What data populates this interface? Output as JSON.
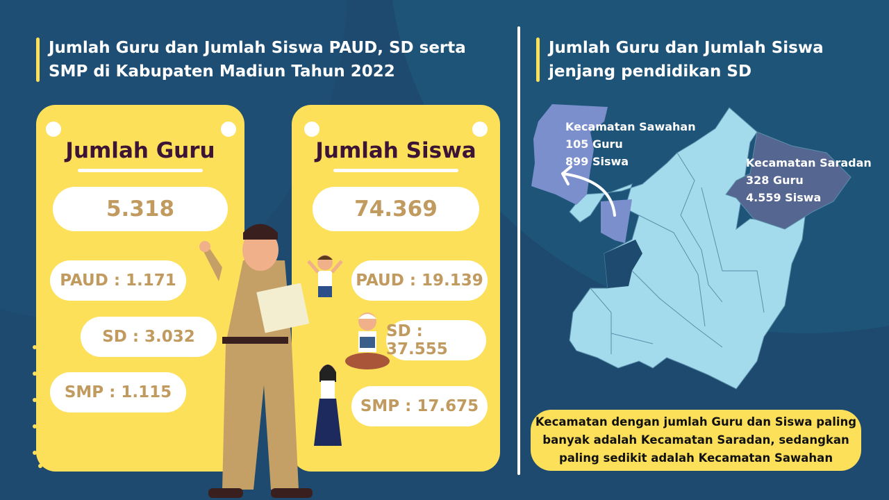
{
  "left": {
    "title_line1": "Jumlah Guru dan Jumlah Siswa PAUD, SD serta",
    "title_line2": "SMP di Kabupaten Madiun Tahun 2022",
    "guru": {
      "heading": "Jumlah Guru",
      "total": "5.318",
      "paud": "PAUD : 1.171",
      "sd": "SD : 3.032",
      "smp": "SMP : 1.115"
    },
    "siswa": {
      "heading": "Jumlah Siswa",
      "total": "74.369",
      "paud": "PAUD : 19.139",
      "sd": "SD : 37.555",
      "smp": "SMP : 17.675"
    }
  },
  "right": {
    "title_line1": "Jumlah Guru dan Jumlah Siswa",
    "title_line2": "jenjang pendidikan SD",
    "sawahan": {
      "name": "Kecamatan Sawahan",
      "guru": "105 Guru",
      "siswa": "899 Siswa"
    },
    "saradan": {
      "name": "Kecamatan Saradan",
      "guru": "328 Guru",
      "siswa": "4.559 Siswa"
    },
    "summary": "Kecamatan dengan jumlah Guru dan Siswa paling banyak adalah Kecamatan Saradan, sedangkan paling sedikit adalah Kecamatan Sawahan"
  },
  "colors": {
    "background": "#1d4a6e",
    "card": "#fde05a",
    "number": "#c09a5e",
    "heading": "#3b1436",
    "map_region": "#a3dbec",
    "sawahan": "#7b8fcc",
    "saradan": "#556690"
  }
}
